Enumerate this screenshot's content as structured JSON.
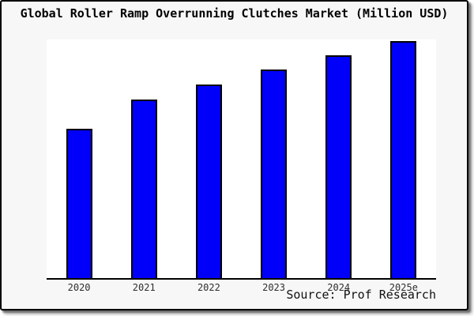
{
  "chart_data": {
    "type": "bar",
    "title": "Global Roller Ramp Overrunning Clutches Market (Million USD)",
    "categories": [
      "2020",
      "2021",
      "2022",
      "2023",
      "2024",
      "2025e"
    ],
    "values": [
      62.7,
      74.9,
      81.2,
      87.5,
      93.4,
      99.3
    ],
    "values_note": "relative bar heights as percent of plot height; no y-axis scale shown in image",
    "xlabel": "",
    "ylabel": "",
    "ylim": [
      0,
      100
    ],
    "grid": false,
    "legend": false,
    "bar_color": "#0000FA",
    "bar_border_color": "#000000",
    "plot_bg_color": "#FFFFFF",
    "frame_bg_color": "#F7F7F7",
    "axis_color": "#000000"
  },
  "footer": {
    "source_label": "Source: Prof Research"
  }
}
